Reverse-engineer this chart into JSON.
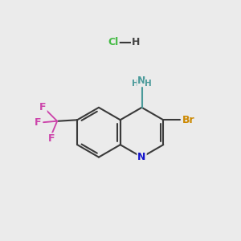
{
  "background_color": "#ebebeb",
  "bond_color": "#3a3a3a",
  "bond_width": 1.5,
  "figsize": [
    3.0,
    3.0
  ],
  "dpi": 100,
  "atom_colors": {
    "N_ring": "#1414cc",
    "N_amine": "#4a9a9a",
    "H_amine": "#4a9a9a",
    "Br": "#cc8800",
    "F": "#cc44aa",
    "Cl": "#44bb44",
    "H_hcl": "#444444"
  },
  "font_size": 9,
  "font_size_small": 7.5,
  "xlim": [
    0,
    10
  ],
  "ylim": [
    0,
    10
  ]
}
